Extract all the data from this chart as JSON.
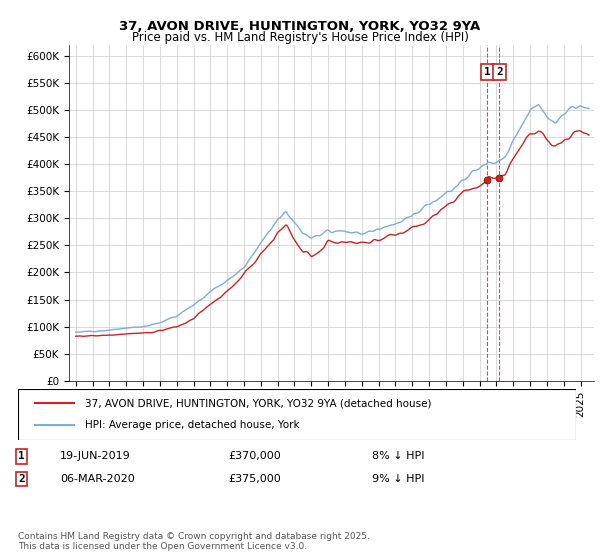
{
  "title": "37, AVON DRIVE, HUNTINGTON, YORK, YO32 9YA",
  "subtitle": "Price paid vs. HM Land Registry's House Price Index (HPI)",
  "legend_line1": "37, AVON DRIVE, HUNTINGTON, YORK, YO32 9YA (detached house)",
  "legend_line2": "HPI: Average price, detached house, York",
  "transaction1_date": "19-JUN-2019",
  "transaction1_price": "£370,000",
  "transaction1_hpi": "8% ↓ HPI",
  "transaction2_date": "06-MAR-2020",
  "transaction2_price": "£375,000",
  "transaction2_hpi": "9% ↓ HPI",
  "footer": "Contains HM Land Registry data © Crown copyright and database right 2025.\nThis data is licensed under the Open Government Licence v3.0.",
  "hpi_color": "#7bafd4",
  "price_color": "#cc2222",
  "vline_color": "#cc2222",
  "ylim": [
    0,
    620000
  ],
  "ytick_vals": [
    0,
    50000,
    100000,
    150000,
    200000,
    250000,
    300000,
    350000,
    400000,
    450000,
    500000,
    550000,
    600000
  ],
  "ytick_labels": [
    "£0",
    "£50K",
    "£100K",
    "£150K",
    "£200K",
    "£250K",
    "£300K",
    "£350K",
    "£400K",
    "£450K",
    "£500K",
    "£550K",
    "£600K"
  ],
  "marker1_x": 2019.47,
  "marker1_y": 370000,
  "marker2_x": 2020.18,
  "marker2_y": 375000,
  "vline_x1": 2019.47,
  "vline_x2": 2020.18,
  "xmin": 1994.6,
  "xmax": 2025.8
}
